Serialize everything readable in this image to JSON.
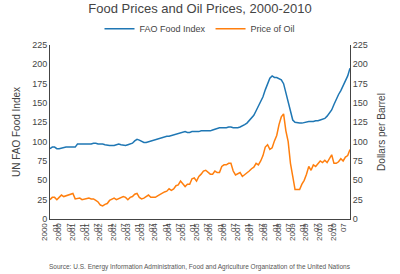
{
  "chart_data": {
    "type": "line",
    "title": "Food Prices and Oil Prices, 2000-2010",
    "y_label": "UN FAO Food Index",
    "y2_label": "Dollars per Barrel",
    "annotations": [
      "Source: U.S. Energy Information Administration, Food and Agriculture Organization of the United Nations"
    ],
    "categories": [
      "2000\n01",
      null,
      null,
      null,
      null,
      null,
      "2000\n07",
      null,
      null,
      null,
      null,
      null,
      "2001\n01",
      null,
      null,
      null,
      null,
      null,
      "2001\n07",
      null,
      null,
      null,
      null,
      null,
      "2002\n01",
      null,
      null,
      null,
      null,
      null,
      "2002\n07",
      null,
      null,
      null,
      null,
      null,
      "2003\n01",
      null,
      null,
      null,
      null,
      null,
      "2003\n07",
      null,
      null,
      null,
      null,
      null,
      "2004\n01",
      null,
      null,
      null,
      null,
      null,
      "2004\n07",
      null,
      null,
      null,
      null,
      null,
      "2005\n01",
      null,
      null,
      null,
      null,
      null,
      "2005\n07",
      null,
      null,
      null,
      null,
      null,
      "2006\n01",
      null,
      null,
      null,
      null,
      null,
      "2006\n07",
      null,
      null,
      null,
      null,
      null,
      "2007\n01",
      null,
      null,
      null,
      null,
      null,
      "2007\n07",
      null,
      null,
      null,
      null,
      null,
      "2008\n01",
      null,
      null,
      null,
      null,
      null,
      "2008\n07",
      null,
      null,
      null,
      null,
      null,
      "2009\n01",
      null,
      null,
      null,
      null,
      null,
      "2009\n07",
      null,
      null,
      null,
      null,
      null,
      "2010\n01",
      null,
      null,
      null,
      null,
      null,
      "2010\n07",
      null,
      null,
      null,
      null,
      null
    ],
    "series": [
      {
        "name": "FAO Food Index",
        "values": [
          91,
          93,
          93,
          91,
          91,
          92,
          93,
          93,
          93,
          93,
          93,
          93,
          97,
          97,
          97,
          97,
          97,
          97,
          97,
          98,
          98,
          97,
          97,
          97,
          96,
          95,
          95,
          95,
          95,
          96,
          97,
          96,
          95,
          95,
          96,
          97,
          98,
          101,
          103,
          102,
          100,
          99,
          99,
          100,
          101,
          102,
          103,
          104,
          105,
          105,
          106,
          107,
          107,
          108,
          109,
          110,
          111,
          112,
          112,
          113,
          112,
          112,
          113,
          113,
          113,
          113,
          114,
          114,
          114,
          114,
          114,
          115,
          116,
          117,
          118,
          118,
          118,
          118,
          119,
          119,
          118,
          118,
          118,
          119,
          120,
          122,
          124,
          127,
          130,
          134,
          140,
          146,
          152,
          158,
          167,
          176,
          182,
          185,
          183,
          183,
          182,
          180,
          175,
          163,
          151,
          138,
          128,
          125,
          124,
          124,
          124,
          125,
          125,
          126,
          126,
          126,
          127,
          127,
          128,
          129,
          130,
          133,
          137,
          141,
          148,
          155,
          161,
          166,
          172,
          178,
          185,
          195
        ]
      },
      {
        "name": "Price of Oil",
        "axis": "y2",
        "values": [
          25,
          28,
          28,
          25,
          28,
          31,
          29,
          30,
          32,
          32,
          33,
          26,
          27,
          27,
          25,
          26,
          27,
          27,
          26,
          26,
          24,
          22,
          18,
          17,
          19,
          20,
          24,
          26,
          27,
          25,
          26,
          28,
          29,
          28,
          25,
          28,
          29,
          32,
          33,
          28,
          26,
          27,
          29,
          31,
          28,
          28,
          28,
          30,
          32,
          34,
          35,
          36,
          39,
          37,
          39,
          43,
          44,
          49,
          46,
          42,
          45,
          45,
          52,
          53,
          49,
          55,
          58,
          62,
          63,
          61,
          58,
          58,
          62,
          60,
          60,
          68,
          70,
          70,
          72,
          72,
          62,
          57,
          58,
          60,
          55,
          57,
          60,
          62,
          65,
          67,
          72,
          70,
          75,
          82,
          93,
          96,
          90,
          92,
          101,
          108,
          122,
          132,
          136,
          114,
          100,
          72,
          55,
          38,
          38,
          38,
          45,
          50,
          58,
          68,
          63,
          70,
          68,
          72,
          75,
          73,
          76,
          73,
          79,
          83,
          72,
          72,
          74,
          78,
          75,
          80,
          82,
          90
        ]
      }
    ],
    "ylim": [
      0,
      225
    ],
    "yticks": [
      0,
      25,
      50,
      75,
      100,
      125,
      150,
      175,
      200,
      225
    ],
    "y2lim": [
      0,
      225
    ],
    "y2ticks": [
      0,
      25,
      50,
      75,
      100,
      125,
      150,
      175,
      200,
      225
    ],
    "grid": false,
    "legend": "top"
  }
}
